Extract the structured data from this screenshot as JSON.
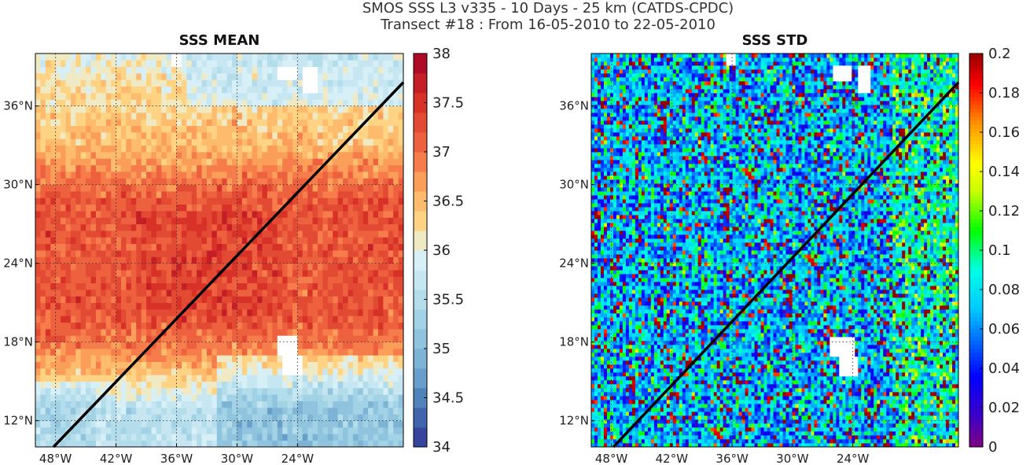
{
  "figure": {
    "title_line1": "SMOS SSS L3 v335 - 10 Days - 25 km (CATDS-CPDC)",
    "title_line2": "Transect #18 : From 16-05-2010 to 22-05-2010"
  },
  "chart_data": [
    {
      "type": "heatmap",
      "title": "SSS MEAN",
      "xlim": [
        -50,
        -13.5
      ],
      "ylim": [
        10,
        40
      ],
      "x_ticks": [
        -48,
        -42,
        -36,
        -30,
        -24
      ],
      "x_tick_labels": [
        "48°W",
        "42°W",
        "36°W",
        "30°W",
        "24°W"
      ],
      "y_ticks": [
        12,
        18,
        24,
        30,
        36
      ],
      "y_tick_labels": [
        "12°N",
        "18°N",
        "24°N",
        "30°N",
        "36°N"
      ],
      "grid": true,
      "colorbar": {
        "vmin": 34,
        "vmax": 38,
        "ticks": [
          34,
          34.5,
          35,
          35.5,
          36,
          36.5,
          37,
          37.5,
          38
        ],
        "tick_labels": [
          "34",
          "34.5",
          "35",
          "35.5",
          "36",
          "36.5",
          "37",
          "37.5",
          "38"
        ],
        "colormap": "RdYlBu_r (discrete, 20 levels)"
      },
      "description": "Salinity ~36.5-37.5 (red) over 18-30°N, lower ~35-36 (blue) south of 16°N, ~36.2-36.8 north of 30°N",
      "transect": {
        "start": [
          -48.2,
          10
        ],
        "end": [
          -13.5,
          37.8
        ]
      }
    },
    {
      "type": "heatmap",
      "title": "SSS STD",
      "xlim": [
        -50,
        -13.5
      ],
      "ylim": [
        10,
        40
      ],
      "x_ticks": [
        -48,
        -42,
        -36,
        -30,
        -24
      ],
      "x_tick_labels": [
        "48°W",
        "42°W",
        "36°W",
        "30°W",
        "24°W"
      ],
      "y_ticks": [
        12,
        18,
        24,
        30,
        36
      ],
      "y_tick_labels": [
        "12°N",
        "18°N",
        "24°N",
        "30°N",
        "36°N"
      ],
      "grid": true,
      "colorbar": {
        "vmin": 0,
        "vmax": 0.2,
        "ticks": [
          0,
          0.02,
          0.04,
          0.06,
          0.08,
          0.1,
          0.12,
          0.14,
          0.16,
          0.18,
          0.2
        ],
        "tick_labels": [
          "0",
          "0.02",
          "0.04",
          "0.06",
          "0.08",
          "0.1",
          "0.12",
          "0.14",
          "0.16",
          "0.18",
          "0.2"
        ],
        "colormap": "jet"
      },
      "description": "Noisy standard deviation field mostly 0.04-0.12 with scattered high values (>0.18)",
      "transect": {
        "start": [
          -47.8,
          10
        ],
        "end": [
          -13.5,
          37.8
        ]
      }
    }
  ],
  "colors": {
    "transect_line": "#000000",
    "grid": "#333333",
    "missing": "#ffffff"
  }
}
